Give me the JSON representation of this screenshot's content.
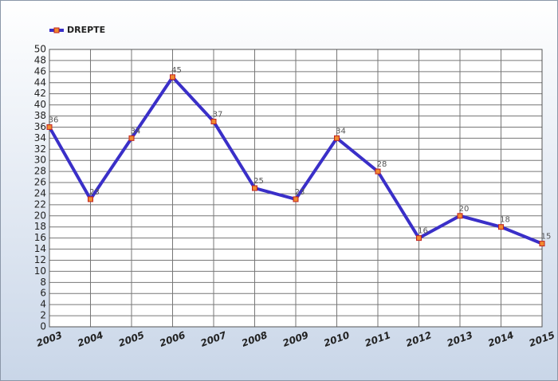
{
  "chart_data": {
    "type": "line",
    "x": [
      2003,
      2004,
      2005,
      2006,
      2007,
      2008,
      2009,
      2010,
      2011,
      2012,
      2013,
      2014,
      2015
    ],
    "series": [
      {
        "name": "DREPTE",
        "color": "#3a2fc8",
        "marker_color": "#f08a30",
        "values": [
          36,
          23,
          34,
          45,
          37,
          25,
          23,
          34,
          28,
          16,
          20,
          18,
          15
        ]
      }
    ],
    "xlim": [
      2003,
      2015
    ],
    "xticks": [
      2003,
      2004,
      2005,
      2006,
      2007,
      2008,
      2009,
      2010,
      2011,
      2012,
      2013,
      2014,
      2015
    ],
    "ylim": [
      0,
      50
    ],
    "yticks": [
      0,
      2,
      4,
      6,
      8,
      10,
      12,
      14,
      16,
      18,
      20,
      22,
      24,
      26,
      28,
      30,
      32,
      34,
      36,
      38,
      40,
      42,
      44,
      46,
      48,
      50
    ],
    "grid": true,
    "legend": "top-left"
  }
}
